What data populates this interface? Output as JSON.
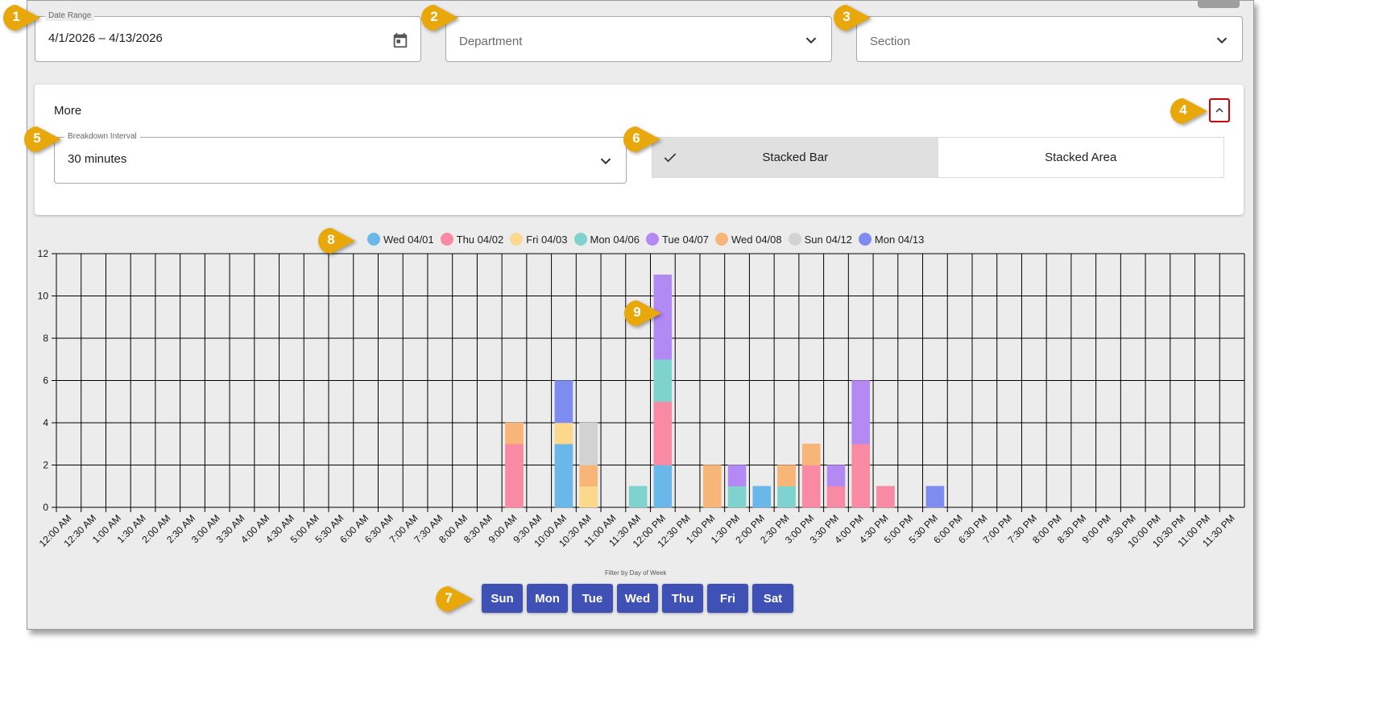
{
  "filters": {
    "date_range_label": "Date Range",
    "date_range_value": "4/1/2026 – 4/13/2026",
    "department_placeholder": "Department",
    "section_placeholder": "Section"
  },
  "more": {
    "title": "More",
    "interval_label": "Breakdown Interval",
    "interval_value": "30 minutes",
    "chart_types": [
      "Stacked Bar",
      "Stacked Area"
    ],
    "selected_chart_type": "Stacked Bar"
  },
  "callouts": [
    "1",
    "2",
    "3",
    "4",
    "5",
    "6",
    "7",
    "8",
    "9"
  ],
  "day_filter": {
    "label": "Filter by Day of Week",
    "days": [
      "Sun",
      "Mon",
      "Tue",
      "Wed",
      "Thu",
      "Fri",
      "Sat"
    ]
  },
  "chart_data": {
    "type": "bar",
    "stacked": true,
    "ylim": [
      0,
      12
    ],
    "yticks": [
      0,
      2,
      4,
      6,
      8,
      10,
      12
    ],
    "grid": true,
    "legend_position": "top",
    "categories": [
      "12:00 AM",
      "12:30 AM",
      "1:00 AM",
      "1:30 AM",
      "2:00 AM",
      "2:30 AM",
      "3:00 AM",
      "3:30 AM",
      "4:00 AM",
      "4:30 AM",
      "5:00 AM",
      "5:30 AM",
      "6:00 AM",
      "6:30 AM",
      "7:00 AM",
      "7:30 AM",
      "8:00 AM",
      "8:30 AM",
      "9:00 AM",
      "9:30 AM",
      "10:00 AM",
      "10:30 AM",
      "11:00 AM",
      "11:30 AM",
      "12:00 PM",
      "12:30 PM",
      "1:00 PM",
      "1:30 PM",
      "2:00 PM",
      "2:30 PM",
      "3:00 PM",
      "3:30 PM",
      "4:00 PM",
      "4:30 PM",
      "5:00 PM",
      "5:30 PM",
      "6:00 PM",
      "6:30 PM",
      "7:00 PM",
      "7:30 PM",
      "8:00 PM",
      "8:30 PM",
      "9:00 PM",
      "9:30 PM",
      "10:00 PM",
      "10:30 PM",
      "11:00 PM",
      "11:30 PM"
    ],
    "series": [
      {
        "name": "Wed 04/01",
        "color": "#6ab7ea",
        "values": [
          0,
          0,
          0,
          0,
          0,
          0,
          0,
          0,
          0,
          0,
          0,
          0,
          0,
          0,
          0,
          0,
          0,
          0,
          0,
          0,
          3,
          0,
          0,
          0,
          2,
          0,
          0,
          0,
          1,
          0,
          0,
          0,
          0,
          0,
          0,
          0,
          0,
          0,
          0,
          0,
          0,
          0,
          0,
          0,
          0,
          0,
          0,
          0
        ]
      },
      {
        "name": "Thu 04/02",
        "color": "#f88aa3",
        "values": [
          0,
          0,
          0,
          0,
          0,
          0,
          0,
          0,
          0,
          0,
          0,
          0,
          0,
          0,
          0,
          0,
          0,
          0,
          3,
          0,
          0,
          0,
          0,
          0,
          3,
          0,
          0,
          0,
          0,
          0,
          2,
          1,
          3,
          1,
          0,
          0,
          0,
          0,
          0,
          0,
          0,
          0,
          0,
          0,
          0,
          0,
          0,
          0
        ]
      },
      {
        "name": "Fri 04/03",
        "color": "#fbd88c",
        "values": [
          0,
          0,
          0,
          0,
          0,
          0,
          0,
          0,
          0,
          0,
          0,
          0,
          0,
          0,
          0,
          0,
          0,
          0,
          0,
          0,
          1,
          1,
          0,
          0,
          0,
          0,
          0,
          0,
          0,
          0,
          0,
          0,
          0,
          0,
          0,
          0,
          0,
          0,
          0,
          0,
          0,
          0,
          0,
          0,
          0,
          0,
          0,
          0
        ]
      },
      {
        "name": "Mon 04/06",
        "color": "#7ed3ce",
        "values": [
          0,
          0,
          0,
          0,
          0,
          0,
          0,
          0,
          0,
          0,
          0,
          0,
          0,
          0,
          0,
          0,
          0,
          0,
          0,
          0,
          0,
          0,
          0,
          1,
          2,
          0,
          0,
          1,
          0,
          1,
          0,
          0,
          0,
          0,
          0,
          0,
          0,
          0,
          0,
          0,
          0,
          0,
          0,
          0,
          0,
          0,
          0,
          0
        ]
      },
      {
        "name": "Tue 04/07",
        "color": "#b38af4",
        "values": [
          0,
          0,
          0,
          0,
          0,
          0,
          0,
          0,
          0,
          0,
          0,
          0,
          0,
          0,
          0,
          0,
          0,
          0,
          0,
          0,
          0,
          0,
          0,
          0,
          4,
          0,
          0,
          1,
          0,
          0,
          0,
          1,
          3,
          0,
          0,
          0,
          0,
          0,
          0,
          0,
          0,
          0,
          0,
          0,
          0,
          0,
          0,
          0
        ]
      },
      {
        "name": "Wed 04/08",
        "color": "#f8b578",
        "values": [
          0,
          0,
          0,
          0,
          0,
          0,
          0,
          0,
          0,
          0,
          0,
          0,
          0,
          0,
          0,
          0,
          0,
          0,
          1,
          0,
          0,
          1,
          0,
          0,
          0,
          0,
          2,
          0,
          0,
          1,
          1,
          0,
          0,
          0,
          0,
          0,
          0,
          0,
          0,
          0,
          0,
          0,
          0,
          0,
          0,
          0,
          0,
          0
        ]
      },
      {
        "name": "Sun 04/12",
        "color": "#d2d2d2",
        "values": [
          0,
          0,
          0,
          0,
          0,
          0,
          0,
          0,
          0,
          0,
          0,
          0,
          0,
          0,
          0,
          0,
          0,
          0,
          0,
          0,
          0,
          2,
          0,
          0,
          0,
          0,
          0,
          0,
          0,
          0,
          0,
          0,
          0,
          0,
          0,
          0,
          0,
          0,
          0,
          0,
          0,
          0,
          0,
          0,
          0,
          0,
          0,
          0
        ]
      },
      {
        "name": "Mon 04/13",
        "color": "#7e8cf0",
        "values": [
          0,
          0,
          0,
          0,
          0,
          0,
          0,
          0,
          0,
          0,
          0,
          0,
          0,
          0,
          0,
          0,
          0,
          0,
          0,
          0,
          2,
          0,
          0,
          0,
          0,
          0,
          0,
          0,
          0,
          0,
          0,
          0,
          0,
          0,
          0,
          1,
          0,
          0,
          0,
          0,
          0,
          0,
          0,
          0,
          0,
          0,
          0,
          0
        ]
      }
    ]
  },
  "colors": {
    "callout": "#e8a80c",
    "day_button": "#3f51b5",
    "highlight": "#d00000"
  }
}
